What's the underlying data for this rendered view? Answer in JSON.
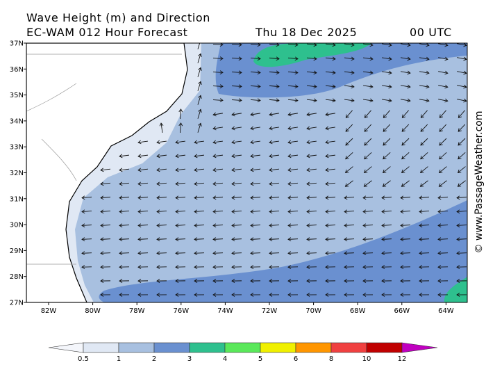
{
  "header": {
    "title": "Wave Height (m) and Direction",
    "model": "EC-WAM 012 Hour Forecast",
    "date": "Thu 18 Dec 2025",
    "time": "00 UTC"
  },
  "latitude_labels": [
    "37N",
    "36N",
    "35N",
    "34N",
    "33N",
    "32N",
    "31N",
    "30N",
    "29N",
    "28N",
    "27N"
  ],
  "longitude_labels": [
    "82W",
    "80W",
    "78W",
    "76W",
    "74W",
    "72W",
    "70W",
    "68W",
    "66W",
    "64W"
  ],
  "legend": {
    "labels": [
      "0.5",
      "1",
      "2",
      "3",
      "4",
      "5",
      "6",
      "8",
      "10",
      "12"
    ]
  },
  "credit": "© www.PassageWeather.com"
}
